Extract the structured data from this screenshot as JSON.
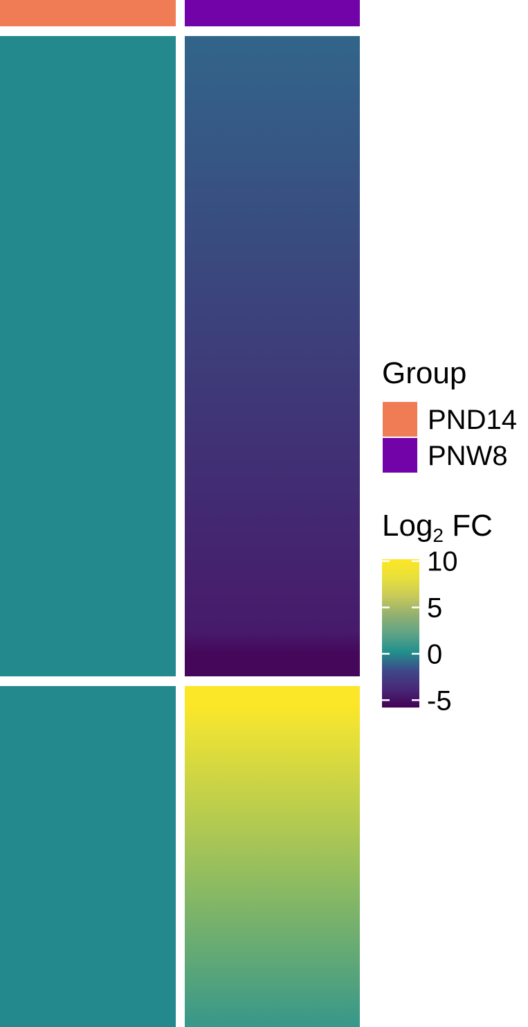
{
  "chart_data": {
    "type": "heatmap",
    "columns": [
      {
        "group": "PND14"
      },
      {
        "group": "PNW8"
      }
    ],
    "annotation": {
      "title": "Group",
      "entries": [
        {
          "label": "PND14",
          "color": "#F07C56"
        },
        {
          "label": "PNW8",
          "color": "#7203A8"
        }
      ]
    },
    "row_clusters": [
      {
        "column_values": [
          {
            "from": 0,
            "to": 0
          },
          {
            "from": -1,
            "to": -4.5,
            "tail": -5.5
          }
        ]
      },
      {
        "column_values": [
          {
            "from": 0,
            "to": 0
          },
          {
            "from": 10,
            "to": 0.9
          }
        ]
      }
    ],
    "color_scale": {
      "title_main": "Log",
      "title_sub": "2",
      "title_rest": " FC",
      "ticks": [
        10,
        5,
        0,
        -5
      ],
      "tick_labels": [
        "10",
        "5",
        "0",
        "-5"
      ],
      "range": [
        -5.8,
        10.2
      ],
      "stops": [
        {
          "value": -5.8,
          "color": "#440154"
        },
        {
          "value": -3.8,
          "color": "#482878"
        },
        {
          "value": -1.8,
          "color": "#3E4989"
        },
        {
          "value": 0.2,
          "color": "#21908C"
        },
        {
          "value": 2.2,
          "color": "#5FA486"
        },
        {
          "value": 4.2,
          "color": "#93B070"
        },
        {
          "value": 6.2,
          "color": "#C8C95A"
        },
        {
          "value": 8.2,
          "color": "#E8E03A"
        },
        {
          "value": 10.2,
          "color": "#FDE725"
        }
      ]
    }
  }
}
